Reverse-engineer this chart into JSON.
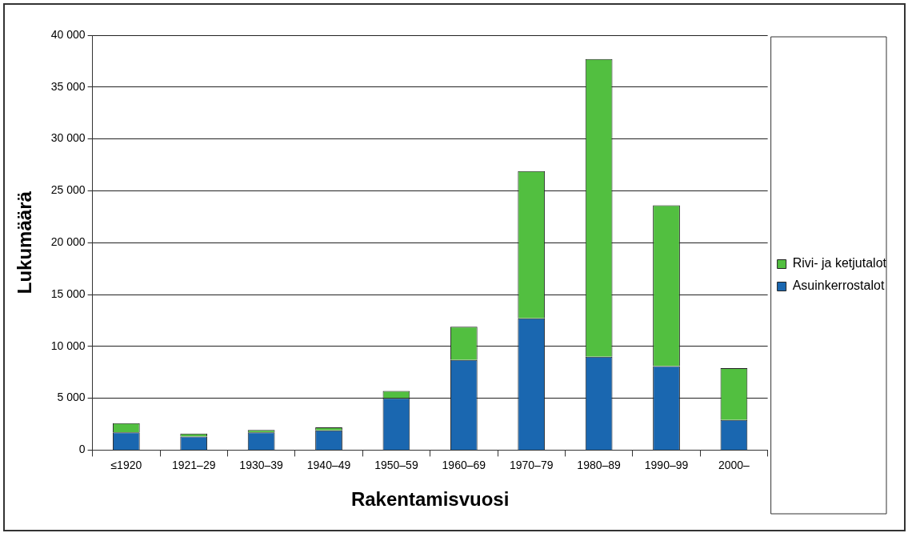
{
  "chart_data": {
    "type": "bar",
    "stacked": true,
    "xlabel": "Rakentamisvuosi",
    "ylabel": "Lukumäärä",
    "categories": [
      "≤1920",
      "1921–29",
      "1930–39",
      "1940–49",
      "1950–59",
      "1960–69",
      "1970–79",
      "1980–89",
      "1990–99",
      "2000–"
    ],
    "series": [
      {
        "name": "Asuinkerrostalot",
        "color": "#1a67b0",
        "values": [
          1700,
          1300,
          1700,
          1900,
          5000,
          8700,
          12700,
          9000,
          8100,
          2900
        ]
      },
      {
        "name": "Rivi- ja ketjutalot",
        "color": "#52bf40",
        "values": [
          900,
          300,
          250,
          300,
          700,
          3200,
          14200,
          28700,
          15500,
          5000
        ]
      }
    ],
    "ylim": [
      0,
      40000
    ],
    "yticks": [
      0,
      {
        "value": 5000,
        "label": "5 000"
      },
      {
        "value": 10000,
        "label": "10 000"
      },
      {
        "value": 15000,
        "label": "15 000"
      },
      {
        "value": 20000,
        "label": "20 000"
      },
      {
        "value": 25000,
        "label": "25 000"
      },
      {
        "value": 30000,
        "label": "30 000"
      },
      {
        "value": 35000,
        "label": "35 000"
      },
      {
        "value": 40000,
        "label": "40 000"
      }
    ],
    "grid": "y",
    "legend": "right"
  }
}
